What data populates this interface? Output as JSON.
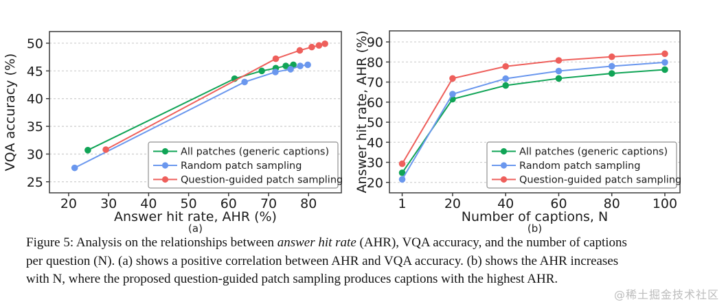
{
  "figure": {
    "caption_lines": [
      [
        {
          "text": "Figure 5: Analysis on the relationships between ",
          "italic": false
        },
        {
          "text": "answer hit rate",
          "italic": true
        },
        {
          "text": " (AHR), VQA accuracy, and the number of captions",
          "italic": false
        }
      ],
      [
        {
          "text": "per question (N). (a) shows a positive correlation between AHR and VQA accuracy. (b) shows the AHR increases",
          "italic": false
        }
      ],
      [
        {
          "text": "with N, where the proposed question-guided patch sampling produces captions with the highest AHR.",
          "italic": false
        }
      ]
    ],
    "watermark": "@稀土掘金技术社区"
  },
  "colors": {
    "green": "#10a456",
    "blue": "#6a97ee",
    "red": "#ee5f5b",
    "grid": "#cccccc",
    "frame": "#3a3a3a",
    "text": "#1a1a1a",
    "sublabel": "#222222",
    "legend_border": "#8f8f8f"
  },
  "chart_data": [
    {
      "id": "a",
      "type": "line",
      "title": "",
      "xlabel": "Answer hit rate, AHR (%)",
      "ylabel": "VQA accuracy (%)",
      "sublabel": "(a)",
      "xlim": [
        15.2,
        88.2
      ],
      "ylim": [
        23.0,
        52.1
      ],
      "xticks": [
        20,
        30,
        40,
        50,
        60,
        70,
        80
      ],
      "yticks": [
        25,
        30,
        35,
        40,
        45,
        50
      ],
      "grid": "horizontal-dashed",
      "legend_position": "lower right",
      "series": [
        {
          "name": "All patches (generic captions)",
          "color_key": "green",
          "x": [
            24.8,
            61.5,
            68.3,
            71.8,
            74.3,
            76.2
          ],
          "y": [
            30.7,
            43.6,
            45.0,
            45.5,
            45.9,
            46.1
          ]
        },
        {
          "name": "Random patch sampling",
          "color_key": "blue",
          "x": [
            21.5,
            64.0,
            71.7,
            75.5,
            77.9,
            79.8
          ],
          "y": [
            27.5,
            43.0,
            44.8,
            45.3,
            45.9,
            46.1
          ]
        },
        {
          "name": "Question-guided patch sampling",
          "color_key": "red",
          "x": [
            29.3,
            71.8,
            77.8,
            80.8,
            82.6,
            84.1
          ],
          "y": [
            30.8,
            47.2,
            48.7,
            49.3,
            49.6,
            49.9
          ]
        }
      ]
    },
    {
      "id": "b",
      "type": "line",
      "title": "",
      "xlabel": "Number of captions, N",
      "ylabel": "Answer hit rate, AHR (%)",
      "sublabel": "(b)",
      "xlim": [
        -3.8,
        105.7
      ],
      "ylim": [
        14.8,
        95.5
      ],
      "xticks": [
        1,
        20,
        40,
        60,
        80,
        100
      ],
      "yticks": [
        20,
        30,
        40,
        50,
        60,
        70,
        80,
        90
      ],
      "grid": "horizontal-dashed",
      "legend_position": "lower right",
      "series": [
        {
          "name": "All patches (generic captions)",
          "color_key": "green",
          "x": [
            1,
            20,
            40,
            60,
            80,
            100
          ],
          "y": [
            24.8,
            61.5,
            68.3,
            71.8,
            74.3,
            76.2
          ]
        },
        {
          "name": "Random patch sampling",
          "color_key": "blue",
          "x": [
            1,
            20,
            40,
            60,
            80,
            100
          ],
          "y": [
            21.5,
            64.0,
            71.7,
            75.5,
            77.9,
            79.8
          ]
        },
        {
          "name": "Question-guided patch sampling",
          "color_key": "red",
          "x": [
            1,
            20,
            40,
            60,
            80,
            100
          ],
          "y": [
            29.3,
            71.8,
            77.8,
            80.8,
            82.6,
            84.1
          ]
        }
      ]
    }
  ]
}
